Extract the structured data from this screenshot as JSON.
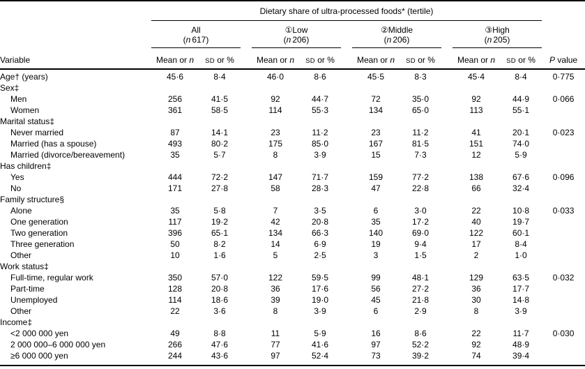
{
  "table": {
    "title": "Dietary share of ultra-processed foods* (tertile)",
    "variable_header": "Variable",
    "n_symbol": "n",
    "format": {
      "paren_open": "(",
      "paren_close": ")"
    },
    "sub_headers": {
      "mean_prefix": "Mean or ",
      "mean_italic": "n",
      "sd_caps": "SD",
      "sd_rest": " or %",
      "p_italic": "P",
      "p_rest": " value"
    },
    "groups": [
      {
        "label": "All",
        "n": "617"
      },
      {
        "label": "①Low",
        "n": "206"
      },
      {
        "label": "②Middle",
        "n": "206"
      },
      {
        "label": "③High",
        "n": "205"
      }
    ],
    "rows": [
      {
        "label": "Age† (years)",
        "indent": false,
        "values": [
          "45·6",
          "8·4",
          "46·0",
          "8·6",
          "45·5",
          "8·3",
          "45·4",
          "8·4"
        ],
        "p": "0·775"
      },
      {
        "label": "Sex‡",
        "indent": false,
        "values": null,
        "p": ""
      },
      {
        "label": "Men",
        "indent": true,
        "values": [
          "256",
          "41·5",
          "92",
          "44·7",
          "72",
          "35·0",
          "92",
          "44·9"
        ],
        "p": "0·066"
      },
      {
        "label": "Women",
        "indent": true,
        "values": [
          "361",
          "58·5",
          "114",
          "55·3",
          "134",
          "65·0",
          "113",
          "55·1"
        ],
        "p": ""
      },
      {
        "label": "Marital status‡",
        "indent": false,
        "values": null,
        "p": ""
      },
      {
        "label": "Never married",
        "indent": true,
        "values": [
          "87",
          "14·1",
          "23",
          "11·2",
          "23",
          "11·2",
          "41",
          "20·1"
        ],
        "p": "0·023"
      },
      {
        "label": "Married (has a spouse)",
        "indent": true,
        "values": [
          "493",
          "80·2",
          "175",
          "85·0",
          "167",
          "81·5",
          "151",
          "74·0"
        ],
        "p": ""
      },
      {
        "label": "Married (divorce/bereavement)",
        "indent": true,
        "values": [
          "35",
          "5·7",
          "8",
          "3·9",
          "15",
          "7·3",
          "12",
          "5·9"
        ],
        "p": ""
      },
      {
        "label": "Has children‡",
        "indent": false,
        "values": null,
        "p": ""
      },
      {
        "label": "Yes",
        "indent": true,
        "values": [
          "444",
          "72·2",
          "147",
          "71·7",
          "159",
          "77·2",
          "138",
          "67·6"
        ],
        "p": "0·096"
      },
      {
        "label": "No",
        "indent": true,
        "values": [
          "171",
          "27·8",
          "58",
          "28·3",
          "47",
          "22·8",
          "66",
          "32·4"
        ],
        "p": ""
      },
      {
        "label": "Family structure§",
        "indent": false,
        "values": null,
        "p": ""
      },
      {
        "label": "Alone",
        "indent": true,
        "values": [
          "35",
          "5·8",
          "7",
          "3·5",
          "6",
          "3·0",
          "22",
          "10·8"
        ],
        "p": "0·033"
      },
      {
        "label": "One generation",
        "indent": true,
        "values": [
          "117",
          "19·2",
          "42",
          "20·8",
          "35",
          "17·2",
          "40",
          "19·7"
        ],
        "p": ""
      },
      {
        "label": "Two generation",
        "indent": true,
        "values": [
          "396",
          "65·1",
          "134",
          "66·3",
          "140",
          "69·0",
          "122",
          "60·1"
        ],
        "p": ""
      },
      {
        "label": "Three generation",
        "indent": true,
        "values": [
          "50",
          "8·2",
          "14",
          "6·9",
          "19",
          "9·4",
          "17",
          "8·4"
        ],
        "p": ""
      },
      {
        "label": "Other",
        "indent": true,
        "values": [
          "10",
          "1·6",
          "5",
          "2·5",
          "3",
          "1·5",
          "2",
          "1·0"
        ],
        "p": ""
      },
      {
        "label": "Work status‡",
        "indent": false,
        "values": null,
        "p": ""
      },
      {
        "label": "Full-time, regular work",
        "indent": true,
        "values": [
          "350",
          "57·0",
          "122",
          "59·5",
          "99",
          "48·1",
          "129",
          "63·5"
        ],
        "p": "0·032"
      },
      {
        "label": "Part-time",
        "indent": true,
        "values": [
          "128",
          "20·8",
          "36",
          "17·6",
          "56",
          "27·2",
          "36",
          "17·7"
        ],
        "p": ""
      },
      {
        "label": "Unemployed",
        "indent": true,
        "values": [
          "114",
          "18·6",
          "39",
          "19·0",
          "45",
          "21·8",
          "30",
          "14·8"
        ],
        "p": ""
      },
      {
        "label": "Other",
        "indent": true,
        "values": [
          "22",
          "3·6",
          "8",
          "3·9",
          "6",
          "2·9",
          "8",
          "3·9"
        ],
        "p": ""
      },
      {
        "label": "Income‡",
        "indent": false,
        "values": null,
        "p": ""
      },
      {
        "label": "<2 000 000 yen",
        "indent": true,
        "values": [
          "49",
          "8·8",
          "11",
          "5·9",
          "16",
          "8·6",
          "22",
          "11·7"
        ],
        "p": "0·030"
      },
      {
        "label": "2 000 000–6 000 000 yen",
        "indent": true,
        "values": [
          "266",
          "47·6",
          "77",
          "41·6",
          "97",
          "52·2",
          "92",
          "48·9"
        ],
        "p": ""
      },
      {
        "label": "≥6 000 000 yen",
        "indent": true,
        "values": [
          "244",
          "43·6",
          "97",
          "52·4",
          "73",
          "39·2",
          "74",
          "39·4"
        ],
        "p": ""
      }
    ]
  }
}
